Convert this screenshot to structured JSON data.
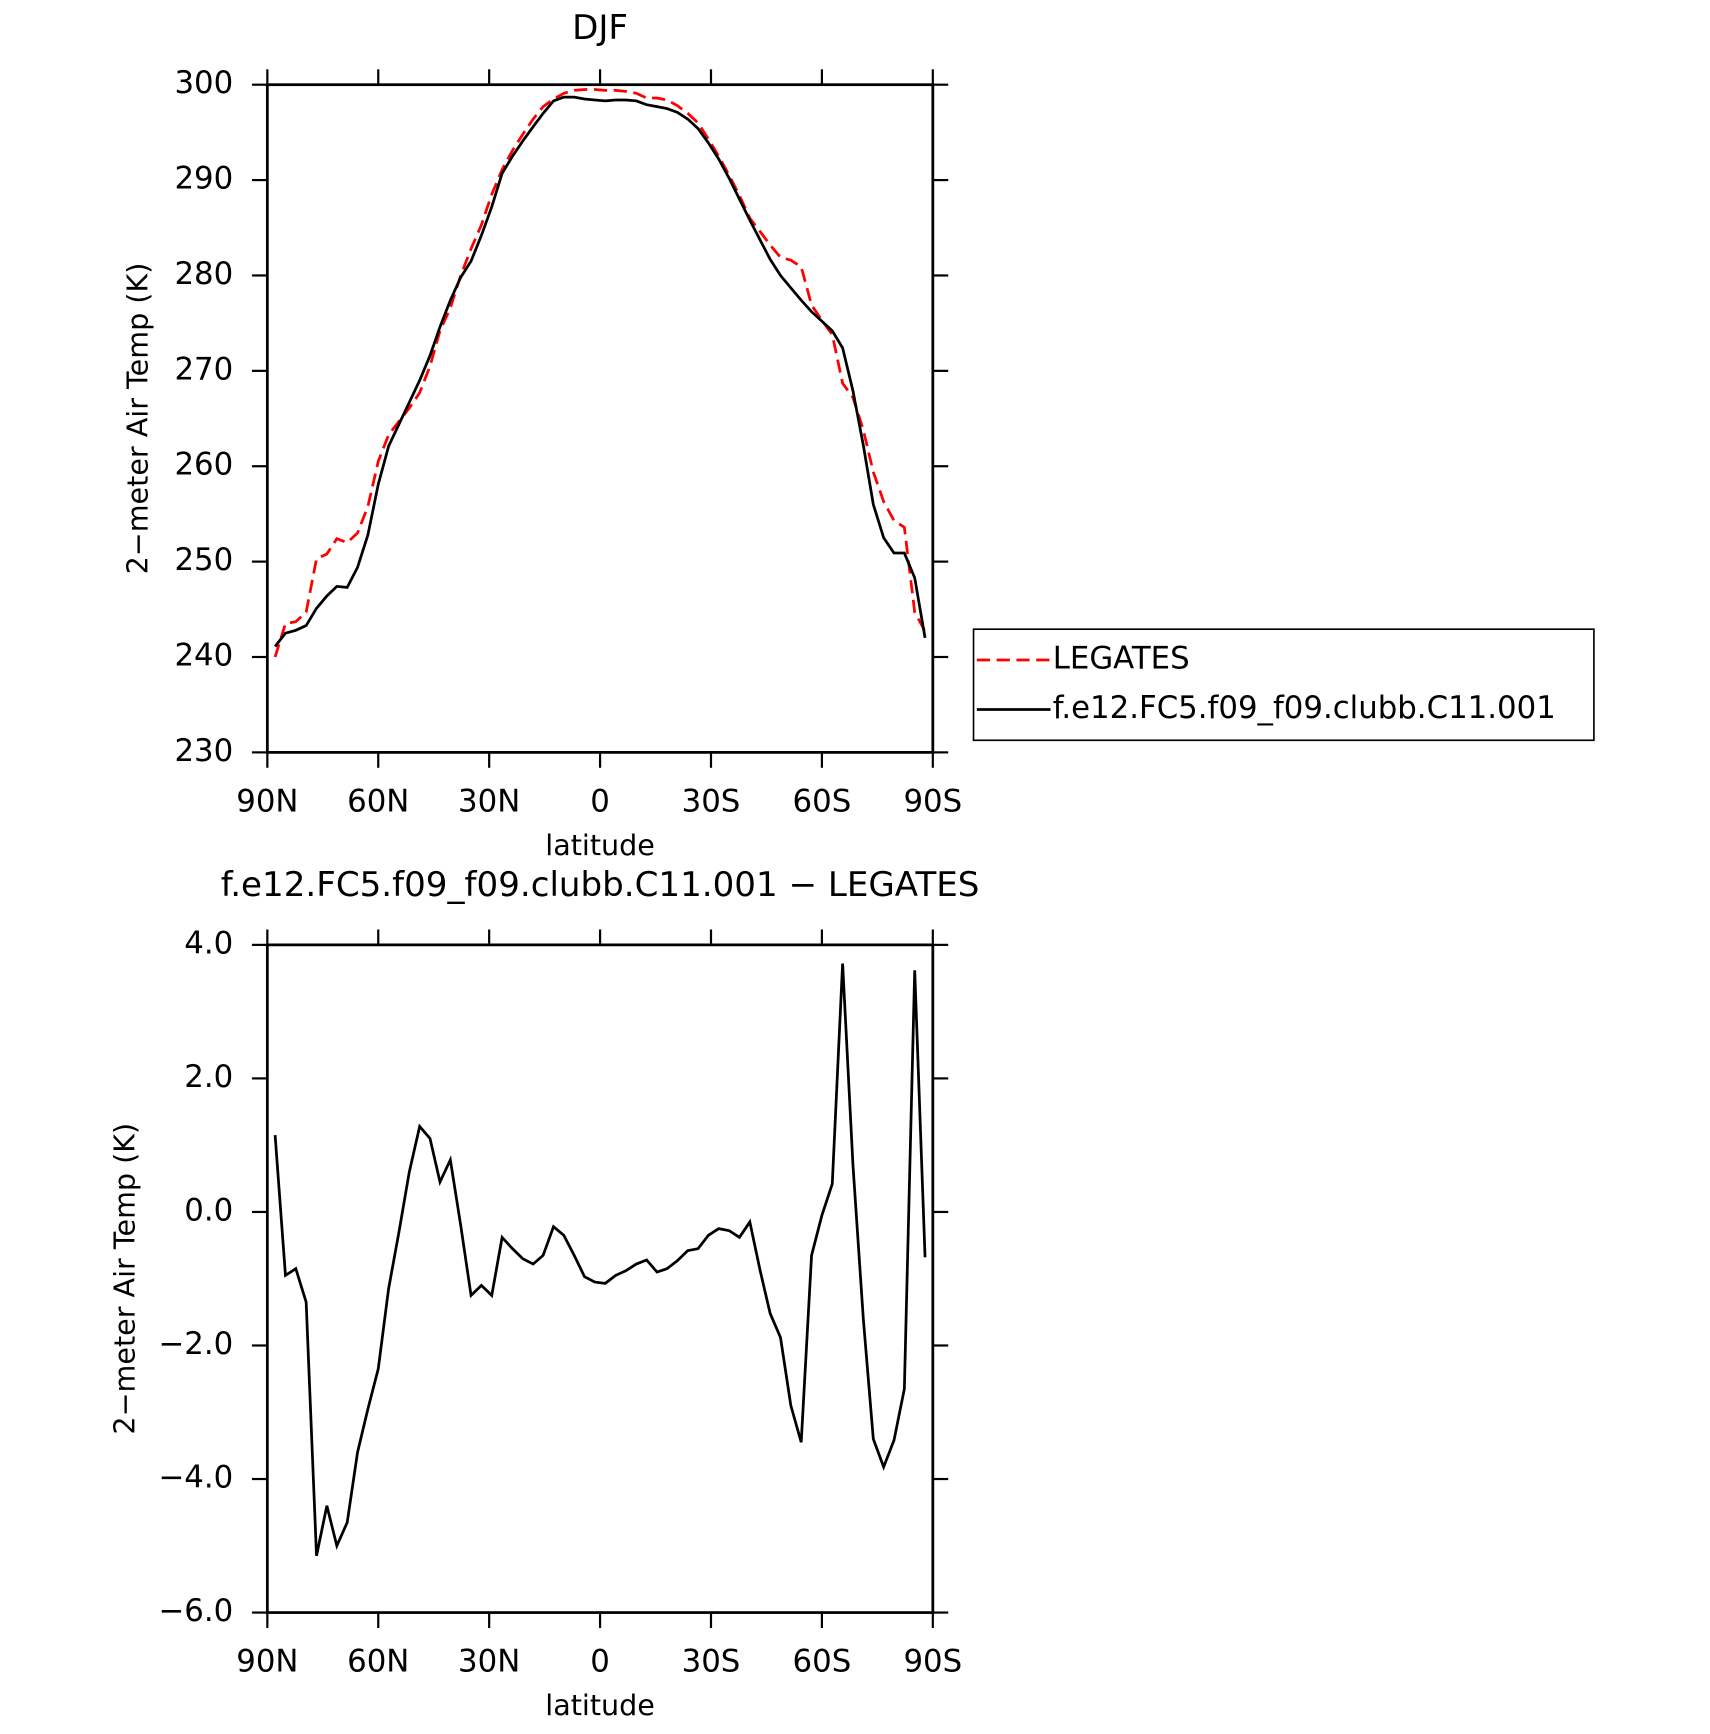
{
  "chart_data": [
    {
      "type": "line",
      "title": "DJF",
      "x_label": "latitude",
      "y_label": "2−meter Air Temp (K)",
      "x": [
        87.9,
        85.1,
        82.3,
        79.5,
        76.7,
        73.9,
        71.2,
        68.4,
        65.6,
        62.8,
        60.0,
        57.2,
        54.4,
        51.6,
        48.8,
        46.0,
        43.3,
        40.5,
        37.7,
        34.9,
        32.1,
        29.3,
        26.5,
        23.7,
        20.9,
        18.1,
        15.4,
        12.6,
        9.8,
        7.0,
        4.2,
        1.4,
        -1.4,
        -4.2,
        -7.0,
        -9.8,
        -12.6,
        -15.4,
        -18.1,
        -20.9,
        -23.7,
        -26.5,
        -29.3,
        -32.1,
        -34.9,
        -37.7,
        -40.5,
        -43.3,
        -46.0,
        -48.8,
        -51.6,
        -54.4,
        -57.2,
        -60.0,
        -62.8,
        -65.6,
        -68.4,
        -71.2,
        -73.9,
        -76.7,
        -79.5,
        -82.3,
        -85.1,
        -87.9
      ],
      "series": [
        {
          "name": "LEGATES",
          "color": "#ff0000",
          "line_style": "dashed",
          "values": [
            240.0,
            243.5,
            243.7,
            244.7,
            250.3,
            250.8,
            252.4,
            252.0,
            253.0,
            255.8,
            260.5,
            263.3,
            264.7,
            266.1,
            267.7,
            270.5,
            274.2,
            276.6,
            280.0,
            282.8,
            285.3,
            288.5,
            291.1,
            293.1,
            294.8,
            296.4,
            297.7,
            298.5,
            299.1,
            299.4,
            299.5,
            299.5,
            299.4,
            299.4,
            299.3,
            299.1,
            298.6,
            298.6,
            298.4,
            297.8,
            297.0,
            296.0,
            294.3,
            292.5,
            290.5,
            288.4,
            286.0,
            284.6,
            283.2,
            281.9,
            281.6,
            280.9,
            276.9,
            275.3,
            273.8,
            268.7,
            267.2,
            263.8,
            259.4,
            256.3,
            254.3,
            253.6,
            244.7,
            242.7
          ]
        },
        {
          "name": "f.e12.FC5.f09_f09.clubb.C11.001",
          "color": "#000000",
          "line_style": "solid",
          "values": [
            241.1,
            242.5,
            242.8,
            243.3,
            245.1,
            246.4,
            247.4,
            247.3,
            249.4,
            252.8,
            258.1,
            262.1,
            264.4,
            266.7,
            269.0,
            271.6,
            274.6,
            277.4,
            279.8,
            281.5,
            284.2,
            287.2,
            290.7,
            292.5,
            294.1,
            295.6,
            297.0,
            298.3,
            298.7,
            298.7,
            298.5,
            298.4,
            298.3,
            298.4,
            298.4,
            298.3,
            297.9,
            297.7,
            297.5,
            297.1,
            296.4,
            295.4,
            293.9,
            292.2,
            290.2,
            288.0,
            285.8,
            283.7,
            281.7,
            280.0,
            278.7,
            277.4,
            276.2,
            275.2,
            274.2,
            272.4,
            267.9,
            262.2,
            256.0,
            252.5,
            250.9,
            250.9,
            248.3,
            242.0
          ]
        }
      ],
      "xlim": [
        90,
        -90
      ],
      "xticks": [
        {
          "value": 90,
          "label": "90N"
        },
        {
          "value": 60,
          "label": "60N"
        },
        {
          "value": 30,
          "label": "30N"
        },
        0,
        {
          "value": -30,
          "label": "30S"
        },
        {
          "value": -60,
          "label": "60S"
        },
        {
          "value": -90,
          "label": "90S"
        }
      ],
      "ylim": [
        230,
        300
      ],
      "yticks": [
        230,
        240,
        250,
        260,
        270,
        280,
        290,
        300
      ],
      "legend": "right"
    },
    {
      "type": "line",
      "title": "f.e12.FC5.f09_f09.clubb.C11.001 − LEGATES",
      "x_label": "latitude",
      "y_label": "2−meter Air Temp (K)",
      "x": [
        87.9,
        85.1,
        82.3,
        79.5,
        76.7,
        73.9,
        71.2,
        68.4,
        65.6,
        62.8,
        60.0,
        57.2,
        54.4,
        51.6,
        48.8,
        46.0,
        43.3,
        40.5,
        37.7,
        34.9,
        32.1,
        29.3,
        26.5,
        23.7,
        20.9,
        18.1,
        15.4,
        12.6,
        9.8,
        7.0,
        4.2,
        1.4,
        -1.4,
        -4.2,
        -7.0,
        -9.8,
        -12.6,
        -15.4,
        -18.1,
        -20.9,
        -23.7,
        -26.5,
        -29.3,
        -32.1,
        -34.9,
        -37.7,
        -40.5,
        -43.3,
        -46.0,
        -48.8,
        -51.6,
        -54.4,
        -57.2,
        -60.0,
        -62.8,
        -65.6,
        -68.4,
        -71.2,
        -73.9,
        -76.7,
        -79.5,
        -82.3,
        -85.1,
        -87.9
      ],
      "color": "#000000",
      "values": [
        1.15,
        -0.95,
        -0.85,
        -1.35,
        -5.15,
        -4.4,
        -5.0,
        -4.65,
        -3.6,
        -2.95,
        -2.35,
        -1.15,
        -0.3,
        0.6,
        1.28,
        1.1,
        0.45,
        0.78,
        -0.2,
        -1.25,
        -1.1,
        -1.25,
        -0.38,
        -0.55,
        -0.7,
        -0.78,
        -0.65,
        -0.22,
        -0.35,
        -0.65,
        -0.97,
        -1.05,
        -1.07,
        -0.95,
        -0.88,
        -0.78,
        -0.72,
        -0.9,
        -0.85,
        -0.73,
        -0.58,
        -0.55,
        -0.35,
        -0.25,
        -0.28,
        -0.38,
        -0.15,
        -0.88,
        -1.52,
        -1.88,
        -2.9,
        -3.45,
        -0.65,
        -0.05,
        0.42,
        3.72,
        0.7,
        -1.6,
        -3.4,
        -3.82,
        -3.42,
        -2.65,
        3.62,
        -0.68
      ],
      "xlim": [
        90,
        -90
      ],
      "xticks": [
        {
          "value": 90,
          "label": "90N"
        },
        {
          "value": 60,
          "label": "60N"
        },
        {
          "value": 30,
          "label": "30N"
        },
        0,
        {
          "value": -30,
          "label": "30S"
        },
        {
          "value": -60,
          "label": "60S"
        },
        {
          "value": -90,
          "label": "90S"
        }
      ],
      "ylim": [
        -6,
        4
      ],
      "yticks": [
        {
          "value": -6,
          "label": "−6.0"
        },
        {
          "value": -4,
          "label": "−4.0"
        },
        {
          "value": -2,
          "label": "−2.0"
        },
        {
          "value": 0,
          "label": "0.0"
        },
        {
          "value": 2,
          "label": "2.0"
        },
        {
          "value": 4,
          "label": "4.0"
        }
      ]
    }
  ]
}
